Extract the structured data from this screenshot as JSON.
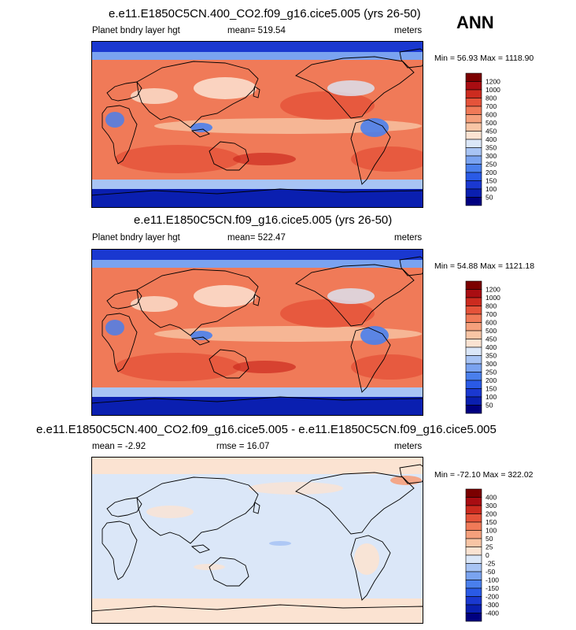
{
  "season": "ANN",
  "chart_data": [
    {
      "type": "heatmap",
      "title": "e.e11.E1850C5CN.400_CO2.f09_g16.cice5.005 (yrs 26-50)",
      "left_label": "Planet bndry layer hgt",
      "center_label": "mean= 519.54",
      "right_label": "meters",
      "minmax": "Min =  56.93 Max = 1118.90",
      "levels": [
        "50",
        "100",
        "150",
        "200",
        "250",
        "300",
        "350",
        "400",
        "450",
        "500",
        "600",
        "700",
        "800",
        "1000",
        "1200"
      ],
      "colors": [
        "#000080",
        "#0a1fb0",
        "#1a38d0",
        "#2a5ae6",
        "#4a7fec",
        "#7aa3f0",
        "#a8c4f4",
        "#dbe7f8",
        "#fbe3d2",
        "#f8c5a5",
        "#f5a07c",
        "#f07a58",
        "#e5533a",
        "#cc2b1f",
        "#a90d12",
        "#7b0000"
      ],
      "mean": 519.54,
      "min": 56.93,
      "max": 1118.9,
      "units": "meters"
    },
    {
      "type": "heatmap",
      "title": "e.e11.E1850C5CN.f09_g16.cice5.005 (yrs 26-50)",
      "left_label": "Planet bndry layer hgt",
      "center_label": "mean= 522.47",
      "right_label": "meters",
      "minmax": "Min =  54.88 Max = 1121.18",
      "levels": [
        "50",
        "100",
        "150",
        "200",
        "250",
        "300",
        "350",
        "400",
        "450",
        "500",
        "600",
        "700",
        "800",
        "1000",
        "1200"
      ],
      "colors": [
        "#000080",
        "#0a1fb0",
        "#1a38d0",
        "#2a5ae6",
        "#4a7fec",
        "#7aa3f0",
        "#a8c4f4",
        "#dbe7f8",
        "#fbe3d2",
        "#f8c5a5",
        "#f5a07c",
        "#f07a58",
        "#e5533a",
        "#cc2b1f",
        "#a90d12",
        "#7b0000"
      ],
      "mean": 522.47,
      "min": 54.88,
      "max": 1121.18,
      "units": "meters"
    },
    {
      "type": "heatmap",
      "title": "e.e11.E1850C5CN.400_CO2.f09_g16.cice5.005 - e.e11.E1850C5CN.f09_g16.cice5.005",
      "left_label": "mean =  -2.92",
      "center_label": "rmse =  16.07",
      "right_label": "meters",
      "minmax": "Min = -72.10 Max = 322.02",
      "levels": [
        "-400",
        "-300",
        "-200",
        "-150",
        "-100",
        "-50",
        "-25",
        "0",
        "25",
        "50",
        "100",
        "150",
        "200",
        "300",
        "400"
      ],
      "colors": [
        "#000080",
        "#0a1fb0",
        "#1a38d0",
        "#2a5ae6",
        "#4a7fec",
        "#7aa3f0",
        "#a8c4f4",
        "#dbe7f8",
        "#fbe3d2",
        "#f8c5a5",
        "#f5a07c",
        "#f07a58",
        "#e5533a",
        "#cc2b1f",
        "#a90d12",
        "#7b0000"
      ],
      "mean": -2.92,
      "rmse": 16.07,
      "min": -72.1,
      "max": 322.02,
      "units": "meters"
    }
  ]
}
